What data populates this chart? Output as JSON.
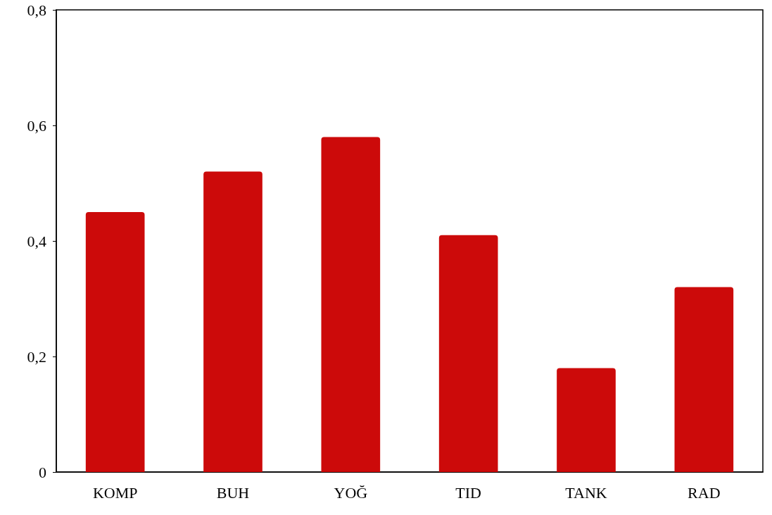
{
  "chart_data": {
    "type": "bar",
    "categories": [
      "KOMP",
      "BUH",
      "YOĞ",
      "TID",
      "TANK",
      "RAD"
    ],
    "values": [
      0.45,
      0.52,
      0.58,
      0.41,
      0.18,
      0.32
    ],
    "color": "#cc0a0a",
    "ylim": [
      0,
      0.8
    ],
    "yticks": [
      {
        "value": 0,
        "label": "0"
      },
      {
        "value": 0.2,
        "label": "0,2"
      },
      {
        "value": 0.4,
        "label": "0,4"
      },
      {
        "value": 0.6,
        "label": "0,6"
      },
      {
        "value": 0.8,
        "label": "0,8"
      }
    ],
    "grid": false
  }
}
